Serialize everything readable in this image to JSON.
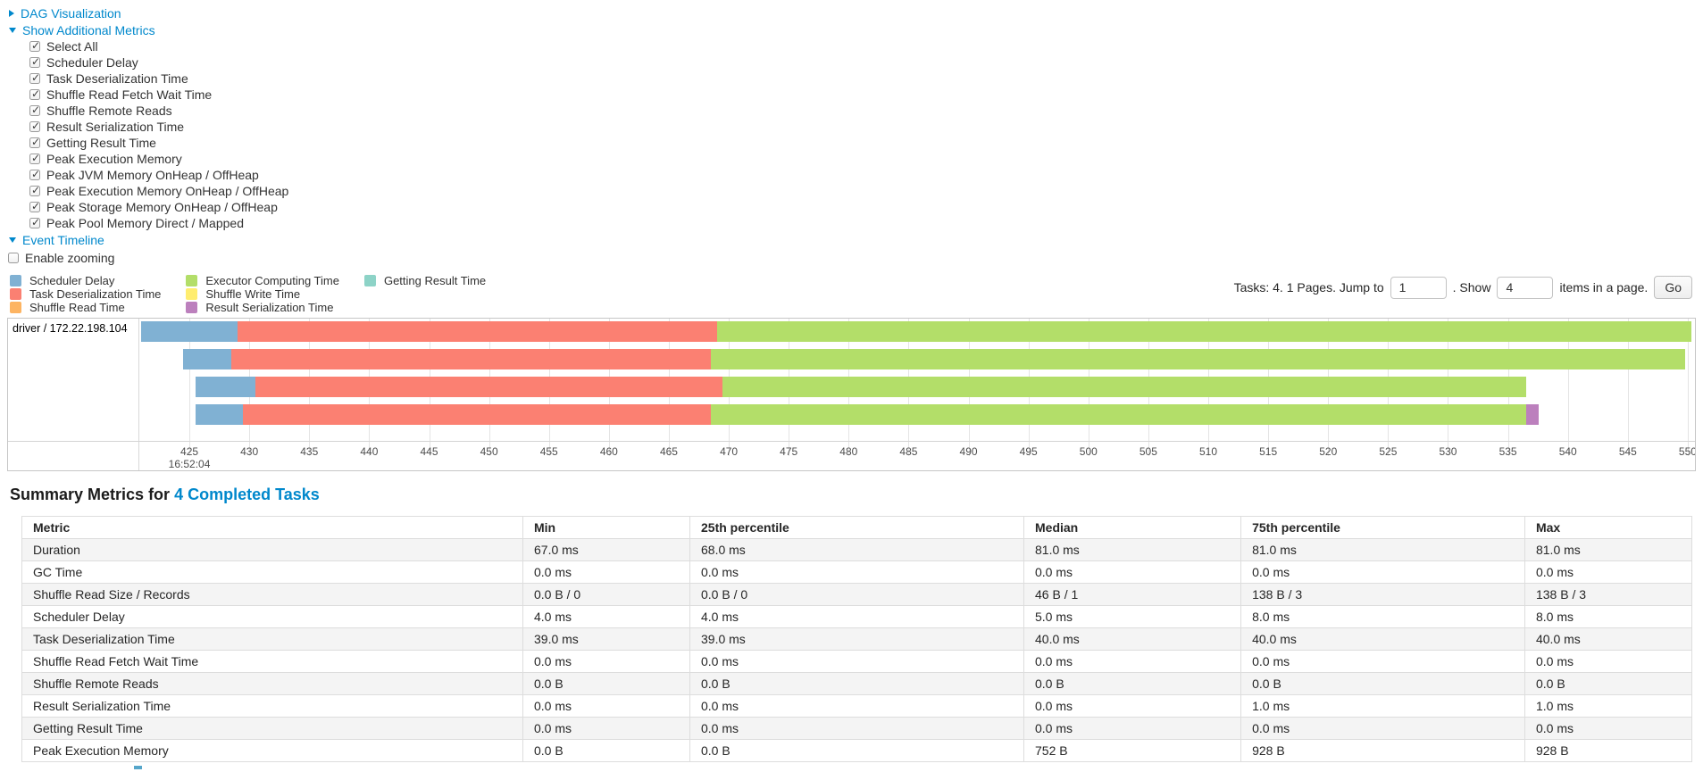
{
  "controls": {
    "dag_toggle": {
      "label": "DAG Visualization",
      "state": "collapsed"
    },
    "additional_metrics_toggle": {
      "label": "Show Additional Metrics",
      "state": "expanded"
    },
    "metric_checkboxes": [
      {
        "label": "Select All",
        "checked": true
      },
      {
        "label": "Scheduler Delay",
        "checked": true
      },
      {
        "label": "Task Deserialization Time",
        "checked": true
      },
      {
        "label": "Shuffle Read Fetch Wait Time",
        "checked": true
      },
      {
        "label": "Shuffle Remote Reads",
        "checked": true
      },
      {
        "label": "Result Serialization Time",
        "checked": true
      },
      {
        "label": "Getting Result Time",
        "checked": true
      },
      {
        "label": "Peak Execution Memory",
        "checked": true
      },
      {
        "label": "Peak JVM Memory OnHeap / OffHeap",
        "checked": true
      },
      {
        "label": "Peak Execution Memory OnHeap / OffHeap",
        "checked": true
      },
      {
        "label": "Peak Storage Memory OnHeap / OffHeap",
        "checked": true
      },
      {
        "label": "Peak Pool Memory Direct / Mapped",
        "checked": true
      }
    ],
    "event_timeline_toggle": {
      "label": "Event Timeline",
      "state": "expanded"
    },
    "enable_zooming": {
      "label": "Enable zooming",
      "checked": false
    }
  },
  "legend": {
    "columns": [
      [
        {
          "label": "Scheduler Delay",
          "color": "#80B1D3"
        },
        {
          "label": "Task Deserialization Time",
          "color": "#FB8072"
        },
        {
          "label": "Shuffle Read Time",
          "color": "#FDB462"
        }
      ],
      [
        {
          "label": "Executor Computing Time",
          "color": "#B3DE69"
        },
        {
          "label": "Shuffle Write Time",
          "color": "#FFED6F"
        },
        {
          "label": "Result Serialization Time",
          "color": "#BC80BD"
        }
      ],
      [
        {
          "label": "Getting Result Time",
          "color": "#8DD3C7"
        }
      ]
    ]
  },
  "pagination": {
    "tasks_text": "Tasks: 4. 1 Pages. Jump to",
    "jump_value": "1",
    "show_text": ". Show",
    "show_value": "4",
    "items_text": "items in a page.",
    "go_label": "Go"
  },
  "chart_data": {
    "type": "timeline-gantt",
    "group_label": "driver / 172.22.198.104",
    "axis": {
      "unit": "ms",
      "major_label": "16:52:04",
      "min": 420.9,
      "max": 550.6,
      "tick_step": 5,
      "ticks": [
        425,
        430,
        435,
        440,
        445,
        450,
        455,
        460,
        465,
        470,
        475,
        480,
        485,
        490,
        495,
        500,
        505,
        510,
        515,
        520,
        525,
        530,
        535,
        540,
        545,
        550
      ]
    },
    "colors": {
      "scheduler_delay": "#80B1D3",
      "task_deserialization": "#FB8072",
      "shuffle_read": "#FDB462",
      "executor_computing": "#B3DE69",
      "shuffle_write": "#FFED6F",
      "result_serialization": "#BC80BD",
      "getting_result": "#8DD3C7"
    },
    "tasks": [
      {
        "segments": [
          {
            "type": "scheduler_delay",
            "start": 421.0,
            "end": 429.0
          },
          {
            "type": "task_deserialization",
            "start": 429.0,
            "end": 469.0
          },
          {
            "type": "executor_computing",
            "start": 469.0,
            "end": 550.3
          }
        ]
      },
      {
        "segments": [
          {
            "type": "scheduler_delay",
            "start": 424.5,
            "end": 428.5
          },
          {
            "type": "task_deserialization",
            "start": 428.5,
            "end": 468.5
          },
          {
            "type": "executor_computing",
            "start": 468.5,
            "end": 549.8
          }
        ]
      },
      {
        "segments": [
          {
            "type": "scheduler_delay",
            "start": 425.5,
            "end": 430.5
          },
          {
            "type": "task_deserialization",
            "start": 430.5,
            "end": 469.5
          },
          {
            "type": "executor_computing",
            "start": 469.5,
            "end": 536.5
          }
        ]
      },
      {
        "segments": [
          {
            "type": "scheduler_delay",
            "start": 425.5,
            "end": 429.5
          },
          {
            "type": "task_deserialization",
            "start": 429.5,
            "end": 468.5
          },
          {
            "type": "executor_computing",
            "start": 468.5,
            "end": 536.5
          },
          {
            "type": "result_serialization",
            "start": 536.5,
            "end": 537.6
          }
        ]
      }
    ]
  },
  "summary": {
    "title_prefix": "Summary Metrics for",
    "title_link": "4 Completed Tasks",
    "columns": [
      "Metric",
      "Min",
      "25th percentile",
      "Median",
      "75th percentile",
      "Max"
    ],
    "rows": [
      {
        "metric": "Duration",
        "values": [
          "67.0 ms",
          "68.0 ms",
          "81.0 ms",
          "81.0 ms",
          "81.0 ms"
        ]
      },
      {
        "metric": "GC Time",
        "values": [
          "0.0 ms",
          "0.0 ms",
          "0.0 ms",
          "0.0 ms",
          "0.0 ms"
        ]
      },
      {
        "metric": "Shuffle Read Size / Records",
        "values": [
          "0.0 B / 0",
          "0.0 B / 0",
          "46 B / 1",
          "138 B / 3",
          "138 B / 3"
        ]
      },
      {
        "metric": "Scheduler Delay",
        "values": [
          "4.0 ms",
          "4.0 ms",
          "5.0 ms",
          "8.0 ms",
          "8.0 ms"
        ]
      },
      {
        "metric": "Task Deserialization Time",
        "values": [
          "39.0 ms",
          "39.0 ms",
          "40.0 ms",
          "40.0 ms",
          "40.0 ms"
        ]
      },
      {
        "metric": "Shuffle Read Fetch Wait Time",
        "values": [
          "0.0 ms",
          "0.0 ms",
          "0.0 ms",
          "0.0 ms",
          "0.0 ms"
        ]
      },
      {
        "metric": "Shuffle Remote Reads",
        "values": [
          "0.0 B",
          "0.0 B",
          "0.0 B",
          "0.0 B",
          "0.0 B"
        ]
      },
      {
        "metric": "Result Serialization Time",
        "values": [
          "0.0 ms",
          "0.0 ms",
          "0.0 ms",
          "1.0 ms",
          "1.0 ms"
        ]
      },
      {
        "metric": "Getting Result Time",
        "values": [
          "0.0 ms",
          "0.0 ms",
          "0.0 ms",
          "0.0 ms",
          "0.0 ms"
        ]
      },
      {
        "metric": "Peak Execution Memory",
        "values": [
          "0.0 B",
          "0.0 B",
          "752 B",
          "928 B",
          "928 B"
        ]
      }
    ]
  },
  "accent_colors": {
    "link_blue": "#0088cc"
  }
}
